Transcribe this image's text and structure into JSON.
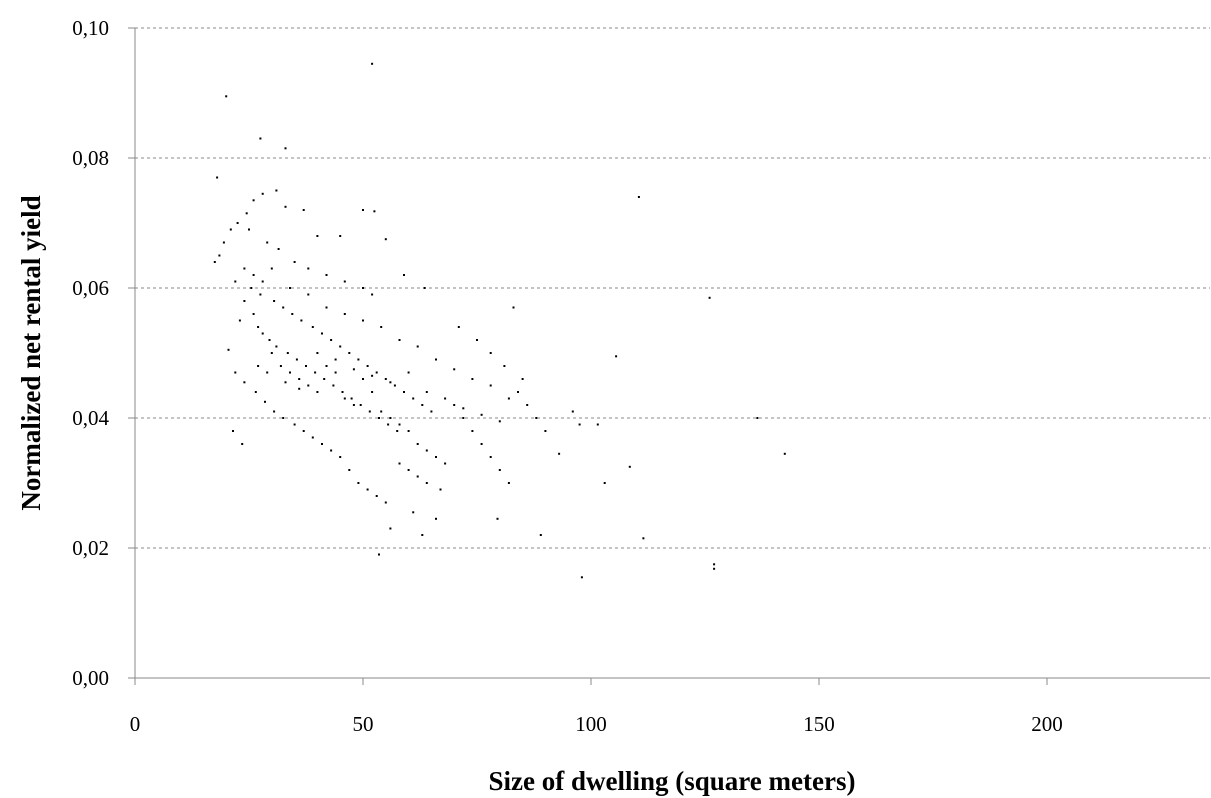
{
  "chart_data": {
    "type": "scatter",
    "title": "",
    "xlabel": "Size of dwelling (square meters)",
    "ylabel": "Normalized net rental yield",
    "xlim": [
      0,
      236
    ],
    "ylim": [
      0,
      0.1
    ],
    "x_ticks": [
      "0",
      "50",
      "100",
      "150",
      "200"
    ],
    "y_ticks": [
      "0,00",
      "0,02",
      "0,04",
      "0,06",
      "0,08",
      "0,10"
    ],
    "grid": "horizontal dashed",
    "legend": "none",
    "point_color": "#000000",
    "series": [
      {
        "points": [
          [
            20.0,
            0.0895
          ],
          [
            52.0,
            0.0945
          ],
          [
            33.0,
            0.0815
          ],
          [
            27.5,
            0.083
          ],
          [
            18.0,
            0.077
          ],
          [
            110.5,
            0.074
          ],
          [
            50.0,
            0.072
          ],
          [
            52.5,
            0.0718
          ],
          [
            126.0,
            0.0585
          ],
          [
            105.5,
            0.0495
          ],
          [
            136.5,
            0.04
          ],
          [
            142.5,
            0.0345
          ],
          [
            101.5,
            0.039
          ],
          [
            108.5,
            0.0325
          ],
          [
            103.0,
            0.03
          ],
          [
            111.5,
            0.0215
          ],
          [
            98.0,
            0.0155
          ],
          [
            127.0,
            0.0175
          ],
          [
            127.0,
            0.0168
          ],
          [
            53.5,
            0.019
          ],
          [
            20.5,
            0.0505
          ],
          [
            22.0,
            0.061
          ],
          [
            24.0,
            0.058
          ],
          [
            26.0,
            0.056
          ],
          [
            28.0,
            0.053
          ],
          [
            30.0,
            0.05
          ],
          [
            32.0,
            0.048
          ],
          [
            34.0,
            0.047
          ],
          [
            36.0,
            0.046
          ],
          [
            38.0,
            0.045
          ],
          [
            40.0,
            0.044
          ],
          [
            42.0,
            0.048
          ],
          [
            44.0,
            0.047
          ],
          [
            46.0,
            0.043
          ],
          [
            48.0,
            0.042
          ],
          [
            50.0,
            0.046
          ],
          [
            52.0,
            0.044
          ],
          [
            54.0,
            0.041
          ],
          [
            56.0,
            0.04
          ],
          [
            58.0,
            0.039
          ],
          [
            60.0,
            0.038
          ],
          [
            62.0,
            0.036
          ],
          [
            64.0,
            0.035
          ],
          [
            66.0,
            0.034
          ],
          [
            68.0,
            0.033
          ],
          [
            70.0,
            0.042
          ],
          [
            72.0,
            0.04
          ],
          [
            74.0,
            0.038
          ],
          [
            76.0,
            0.036
          ],
          [
            78.0,
            0.034
          ],
          [
            80.0,
            0.032
          ],
          [
            82.0,
            0.03
          ],
          [
            84.0,
            0.044
          ],
          [
            86.0,
            0.042
          ],
          [
            88.0,
            0.04
          ],
          [
            90.0,
            0.038
          ],
          [
            85.0,
            0.046
          ],
          [
            79.5,
            0.0245
          ],
          [
            66.0,
            0.0245
          ],
          [
            63.0,
            0.022
          ],
          [
            61.0,
            0.0255
          ],
          [
            56.0,
            0.023
          ],
          [
            89.0,
            0.022
          ],
          [
            93.0,
            0.0345
          ],
          [
            96.0,
            0.041
          ],
          [
            97.5,
            0.039
          ],
          [
            71.0,
            0.054
          ],
          [
            75.0,
            0.052
          ],
          [
            78.0,
            0.05
          ],
          [
            81.0,
            0.048
          ],
          [
            83.0,
            0.057
          ],
          [
            59.0,
            0.062
          ],
          [
            63.5,
            0.06
          ],
          [
            55.0,
            0.0675
          ],
          [
            45.0,
            0.068
          ],
          [
            40.0,
            0.068
          ],
          [
            37.0,
            0.072
          ],
          [
            33.0,
            0.0725
          ],
          [
            31.0,
            0.075
          ],
          [
            28.0,
            0.0745
          ],
          [
            26.0,
            0.0735
          ],
          [
            24.5,
            0.0715
          ],
          [
            22.5,
            0.07
          ],
          [
            21.0,
            0.069
          ],
          [
            19.5,
            0.067
          ],
          [
            18.5,
            0.065
          ],
          [
            17.5,
            0.064
          ],
          [
            25.0,
            0.069
          ],
          [
            29.0,
            0.067
          ],
          [
            31.5,
            0.066
          ],
          [
            35.0,
            0.064
          ],
          [
            38.0,
            0.063
          ],
          [
            42.0,
            0.062
          ],
          [
            46.0,
            0.061
          ],
          [
            50.0,
            0.06
          ],
          [
            52.0,
            0.059
          ],
          [
            23.0,
            0.055
          ],
          [
            27.0,
            0.054
          ],
          [
            29.5,
            0.052
          ],
          [
            31.0,
            0.051
          ],
          [
            33.5,
            0.05
          ],
          [
            35.5,
            0.049
          ],
          [
            37.5,
            0.048
          ],
          [
            39.5,
            0.047
          ],
          [
            41.5,
            0.046
          ],
          [
            43.5,
            0.045
          ],
          [
            45.5,
            0.044
          ],
          [
            47.5,
            0.043
          ],
          [
            49.5,
            0.042
          ],
          [
            51.5,
            0.041
          ],
          [
            53.5,
            0.04
          ],
          [
            55.5,
            0.039
          ],
          [
            57.5,
            0.038
          ],
          [
            25.5,
            0.06
          ],
          [
            27.5,
            0.059
          ],
          [
            30.5,
            0.058
          ],
          [
            32.5,
            0.057
          ],
          [
            34.5,
            0.056
          ],
          [
            36.5,
            0.055
          ],
          [
            39.0,
            0.054
          ],
          [
            41.0,
            0.053
          ],
          [
            43.0,
            0.052
          ],
          [
            45.0,
            0.051
          ],
          [
            47.0,
            0.05
          ],
          [
            49.0,
            0.049
          ],
          [
            51.0,
            0.048
          ],
          [
            53.0,
            0.047
          ],
          [
            55.0,
            0.046
          ],
          [
            57.0,
            0.045
          ],
          [
            59.0,
            0.044
          ],
          [
            61.0,
            0.043
          ],
          [
            63.0,
            0.042
          ],
          [
            65.0,
            0.041
          ],
          [
            22.0,
            0.047
          ],
          [
            24.0,
            0.0455
          ],
          [
            26.5,
            0.044
          ],
          [
            28.5,
            0.0425
          ],
          [
            30.5,
            0.041
          ],
          [
            32.5,
            0.04
          ],
          [
            35.0,
            0.039
          ],
          [
            37.0,
            0.038
          ],
          [
            39.0,
            0.037
          ],
          [
            41.0,
            0.036
          ],
          [
            43.0,
            0.035
          ],
          [
            45.0,
            0.034
          ],
          [
            47.0,
            0.032
          ],
          [
            49.0,
            0.03
          ],
          [
            51.0,
            0.029
          ],
          [
            53.0,
            0.028
          ],
          [
            55.0,
            0.027
          ],
          [
            58.0,
            0.033
          ],
          [
            60.0,
            0.032
          ],
          [
            62.0,
            0.031
          ],
          [
            64.0,
            0.03
          ],
          [
            67.0,
            0.029
          ],
          [
            21.5,
            0.038
          ],
          [
            23.5,
            0.036
          ],
          [
            27.0,
            0.048
          ],
          [
            29.0,
            0.047
          ],
          [
            33.0,
            0.0455
          ],
          [
            36.0,
            0.0445
          ],
          [
            40.0,
            0.05
          ],
          [
            44.0,
            0.049
          ],
          [
            48.0,
            0.0475
          ],
          [
            52.0,
            0.0465
          ],
          [
            56.0,
            0.0455
          ],
          [
            60.0,
            0.047
          ],
          [
            64.0,
            0.044
          ],
          [
            68.0,
            0.043
          ],
          [
            72.0,
            0.0415
          ],
          [
            76.0,
            0.0405
          ],
          [
            80.0,
            0.0395
          ],
          [
            24.0,
            0.063
          ],
          [
            26.0,
            0.062
          ],
          [
            28.0,
            0.061
          ],
          [
            30.0,
            0.063
          ],
          [
            34.0,
            0.06
          ],
          [
            38.0,
            0.059
          ],
          [
            42.0,
            0.057
          ],
          [
            46.0,
            0.056
          ],
          [
            50.0,
            0.055
          ],
          [
            54.0,
            0.054
          ],
          [
            58.0,
            0.052
          ],
          [
            62.0,
            0.051
          ],
          [
            66.0,
            0.049
          ],
          [
            70.0,
            0.0475
          ],
          [
            74.0,
            0.046
          ],
          [
            78.0,
            0.045
          ],
          [
            82.0,
            0.043
          ]
        ]
      }
    ]
  }
}
